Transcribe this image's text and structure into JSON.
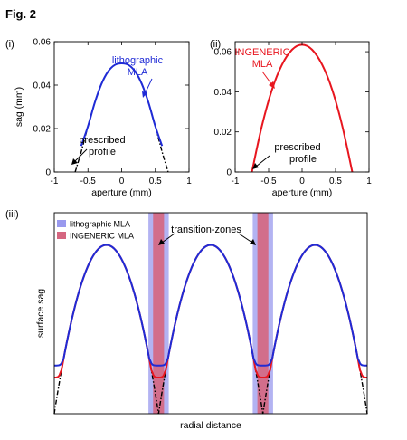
{
  "figure_title": "Fig. 2",
  "colors": {
    "lithographic": "#1f2bd6",
    "ingeneric": "#e8161f",
    "prescribed": "#000000",
    "litho_zone": "#9999ee",
    "ingeneric_zone": "#d56680"
  },
  "panel_labels": {
    "i": "(i)",
    "ii": "(ii)",
    "iii": "(iii)"
  },
  "annotations": {
    "i_curve_line1": "lithographic",
    "i_curve_line2": "MLA",
    "i_prescribed_line1": "prescribed",
    "i_prescribed_line2": "profile",
    "ii_curve_line1": "INGENERIC",
    "ii_curve_line2": "MLA",
    "ii_prescribed_line1": "prescribed",
    "ii_prescribed_line2": "profile",
    "iii_zones": "transition-zones"
  },
  "chart_data": [
    {
      "type": "line",
      "panel": "(i)",
      "xlabel": "aperture (mm)",
      "ylabel": "sag (mm)",
      "xlim": [
        -1,
        1
      ],
      "ylim": [
        0,
        0.06
      ],
      "xticks": [
        "-1",
        "-0.5",
        "0",
        "0.5",
        "1"
      ],
      "yticks": [
        "0",
        "0.02",
        "0.04",
        "0.06"
      ],
      "series": [
        {
          "name": "lithographic MLA",
          "style": "solid",
          "color": "#1f2bd6",
          "x": [
            -0.6,
            -0.5,
            -0.4,
            -0.3,
            -0.2,
            -0.1,
            0,
            0.1,
            0.2,
            0.3,
            0.4,
            0.5,
            0.6
          ],
          "y": [
            0.012,
            0.021,
            0.0318,
            0.0405,
            0.0463,
            0.0493,
            0.05,
            0.0493,
            0.0463,
            0.0405,
            0.0318,
            0.021,
            0.012
          ]
        },
        {
          "name": "prescribed profile",
          "style": "dashdot",
          "color": "#000000",
          "x": [
            -0.69,
            -0.6,
            -0.5,
            -0.4,
            -0.3,
            -0.2,
            -0.1,
            0,
            0.1,
            0.2,
            0.3,
            0.4,
            0.5,
            0.6,
            0.69
          ],
          "y": [
            0,
            0.0093,
            0.021,
            0.0318,
            0.0405,
            0.0463,
            0.0493,
            0.05,
            0.0493,
            0.0463,
            0.0405,
            0.0318,
            0.021,
            0.0093,
            0
          ]
        }
      ]
    },
    {
      "type": "line",
      "panel": "(ii)",
      "xlabel": "aperture (mm)",
      "ylabel": "",
      "xlim": [
        -1,
        1
      ],
      "ylim": [
        0,
        0.065
      ],
      "xticks": [
        "-1",
        "-0.5",
        "0",
        "0.5",
        "1"
      ],
      "yticks": [
        "0",
        "0.02",
        "0.04",
        "0.06"
      ],
      "series": [
        {
          "name": "INGENERIC MLA",
          "style": "solid",
          "color": "#e8161f",
          "x": [
            -0.75,
            -0.6,
            -0.45,
            -0.3,
            -0.15,
            0,
            0.15,
            0.3,
            0.45,
            0.6,
            0.75
          ],
          "y": [
            0,
            0.023,
            0.041,
            0.0535,
            0.061,
            0.0635,
            0.061,
            0.0535,
            0.041,
            0.023,
            0
          ]
        },
        {
          "name": "prescribed profile",
          "style": "dashdot",
          "color": "#000000",
          "x": [
            -0.75,
            -0.6,
            -0.45,
            -0.3,
            -0.15,
            0,
            0.15,
            0.3,
            0.45,
            0.6,
            0.75
          ],
          "y": [
            0,
            0.023,
            0.041,
            0.0535,
            0.061,
            0.0635,
            0.061,
            0.0535,
            0.041,
            0.023,
            0
          ]
        }
      ]
    },
    {
      "type": "line",
      "panel": "(iii)",
      "xlabel": "radial distance",
      "ylabel": "surface sag",
      "xlim": [
        -3,
        3
      ],
      "ylim": [
        0,
        1
      ],
      "legend": {
        "position": "top-left",
        "entries": [
          {
            "name": "lithographic MLA",
            "color": "#9999ee"
          },
          {
            "name": "INGENERIC MLA",
            "color": "#d56680"
          }
        ]
      },
      "transition_zone_centers": [
        -1,
        1
      ],
      "lens_centers": [
        -2,
        0,
        2
      ],
      "series": [
        {
          "name": "lithographic MLA",
          "style": "solid",
          "color": "#1f2bd6",
          "floor": 0.24
        },
        {
          "name": "INGENERIC MLA",
          "style": "solid",
          "color": "#e8161f",
          "floor": 0.18
        },
        {
          "name": "prescribed profile",
          "style": "dashdot",
          "color": "#000000",
          "floor": 0
        }
      ]
    }
  ]
}
